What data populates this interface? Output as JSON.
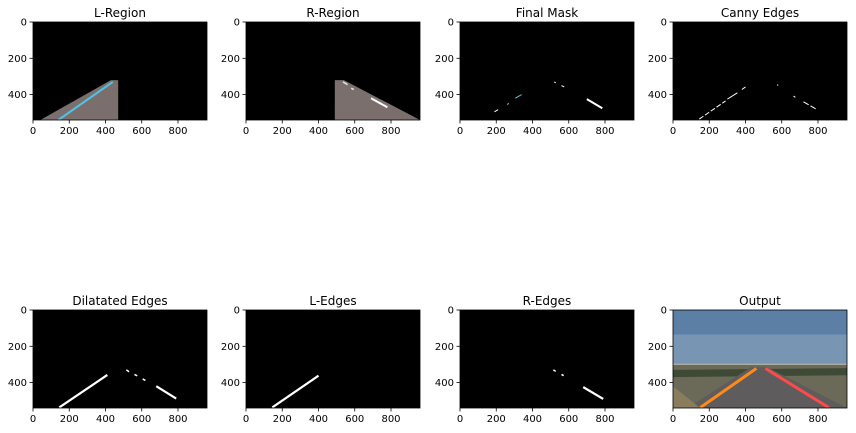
{
  "figure": {
    "panels": [
      {
        "title": "L-Region",
        "content": "l-region"
      },
      {
        "title": "R-Region",
        "content": "r-region"
      },
      {
        "title": "Final Mask",
        "content": "final-mask"
      },
      {
        "title": "Canny Edges",
        "content": "canny-edges"
      },
      {
        "title": "Dilatated Edges",
        "content": "dilated-edges"
      },
      {
        "title": "L-Edges",
        "content": "l-edges"
      },
      {
        "title": "R-Edges",
        "content": "r-edges"
      },
      {
        "title": "Output",
        "content": "output"
      }
    ],
    "axes": {
      "x_ticks": [
        "0",
        "200",
        "400",
        "600",
        "800"
      ],
      "y_ticks": [
        "0",
        "200",
        "400"
      ],
      "x_range": [
        0,
        960
      ],
      "y_range": [
        0,
        540
      ]
    }
  }
}
